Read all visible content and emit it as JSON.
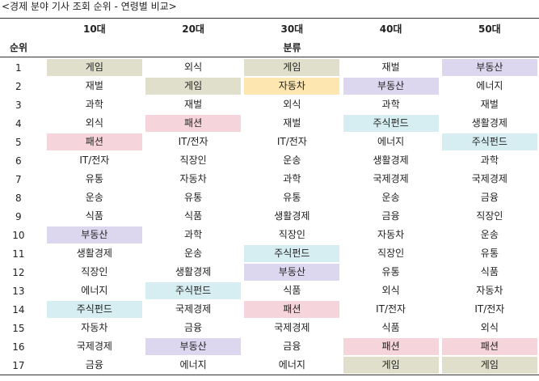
{
  "title": "<경제 분야 기사 조회 순위 - 연령별 비교>",
  "header": {
    "rank_label": "순위",
    "group_label": "분류",
    "ages": [
      "10대",
      "20대",
      "30대",
      "40대",
      "50대"
    ]
  },
  "colors": {
    "게임": "#dfdfcb",
    "패션": "#f6d4dc",
    "부동산": "#dcd7ee",
    "주식펀드": "#d6eef2",
    "자동차": "#fde6b0"
  },
  "rows": [
    {
      "rank": "1",
      "cells": [
        "게임",
        "외식",
        "게임",
        "재벌",
        "부동산"
      ],
      "hl": [
        1,
        0,
        1,
        0,
        1
      ]
    },
    {
      "rank": "2",
      "cells": [
        "재벌",
        "게임",
        "자동차",
        "부동산",
        "에너지"
      ],
      "hl": [
        0,
        1,
        1,
        1,
        0
      ]
    },
    {
      "rank": "3",
      "cells": [
        "과학",
        "재벌",
        "외식",
        "과학",
        "재벌"
      ],
      "hl": [
        0,
        0,
        0,
        0,
        0
      ]
    },
    {
      "rank": "4",
      "cells": [
        "외식",
        "패션",
        "재벌",
        "주식펀드",
        "생활경제"
      ],
      "hl": [
        0,
        1,
        0,
        1,
        0
      ]
    },
    {
      "rank": "5",
      "cells": [
        "패션",
        "IT/전자",
        "IT/전자",
        "에너지",
        "주식펀드"
      ],
      "hl": [
        1,
        0,
        0,
        0,
        1
      ]
    },
    {
      "rank": "6",
      "cells": [
        "IT/전자",
        "직장인",
        "운송",
        "생활경제",
        "과학"
      ],
      "hl": [
        0,
        0,
        0,
        0,
        0
      ]
    },
    {
      "rank": "7",
      "cells": [
        "유통",
        "자동차",
        "과학",
        "국제경제",
        "국제경제"
      ],
      "hl": [
        0,
        0,
        0,
        0,
        0
      ]
    },
    {
      "rank": "8",
      "cells": [
        "운송",
        "유통",
        "유통",
        "운송",
        "금융"
      ],
      "hl": [
        0,
        0,
        0,
        0,
        0
      ]
    },
    {
      "rank": "9",
      "cells": [
        "식품",
        "식품",
        "생활경제",
        "금융",
        "직장인"
      ],
      "hl": [
        0,
        0,
        0,
        0,
        0
      ]
    },
    {
      "rank": "10",
      "cells": [
        "부동산",
        "과학",
        "직장인",
        "자동차",
        "운송"
      ],
      "hl": [
        1,
        0,
        0,
        0,
        0
      ]
    },
    {
      "rank": "11",
      "cells": [
        "생활경제",
        "운송",
        "주식펀드",
        "직장인",
        "유통"
      ],
      "hl": [
        0,
        0,
        1,
        0,
        0
      ]
    },
    {
      "rank": "12",
      "cells": [
        "직장인",
        "생활경제",
        "부동산",
        "유통",
        "식품"
      ],
      "hl": [
        0,
        0,
        1,
        0,
        0
      ]
    },
    {
      "rank": "13",
      "cells": [
        "에너지",
        "주식펀드",
        "식품",
        "외식",
        "자동차"
      ],
      "hl": [
        0,
        1,
        0,
        0,
        0
      ]
    },
    {
      "rank": "14",
      "cells": [
        "주식펀드",
        "국제경제",
        "패션",
        "IT/전자",
        "IT/전자"
      ],
      "hl": [
        1,
        0,
        1,
        0,
        0
      ]
    },
    {
      "rank": "15",
      "cells": [
        "자동차",
        "금융",
        "국제경제",
        "식품",
        "외식"
      ],
      "hl": [
        0,
        0,
        0,
        0,
        0
      ]
    },
    {
      "rank": "16",
      "cells": [
        "국제경제",
        "부동산",
        "금융",
        "패션",
        "패션"
      ],
      "hl": [
        0,
        1,
        0,
        1,
        1
      ]
    },
    {
      "rank": "17",
      "cells": [
        "금융",
        "에너지",
        "에너지",
        "게임",
        "게임"
      ],
      "hl": [
        0,
        0,
        0,
        1,
        1
      ]
    }
  ]
}
